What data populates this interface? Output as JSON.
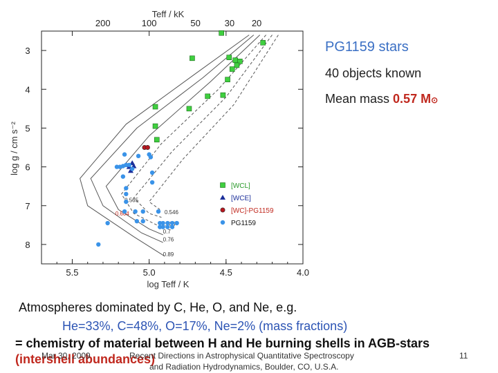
{
  "side_panel": {
    "title": "PG1159 stars",
    "objects": "40 objects known",
    "mass_label": "Mean mass ",
    "mass_value": "0.57 M",
    "mass_unit_symbol": "⊙"
  },
  "chart_data": {
    "type": "scatter",
    "xlabel": "log Teff / K",
    "ylabel": "log g / cm s⁻²",
    "top_axis_label": "Teff / kK",
    "xlim": [
      5.7,
      4.0
    ],
    "ylim": [
      8.5,
      2.5
    ],
    "x_ticks": [
      "5.5",
      "5.0",
      "4.5",
      "4.0"
    ],
    "x_tick_values": [
      5.5,
      5.0,
      4.5,
      4.0
    ],
    "y_ticks": [
      "3",
      "4",
      "5",
      "6",
      "7",
      "8"
    ],
    "y_tick_values": [
      3,
      4,
      5,
      6,
      7,
      8
    ],
    "top_ticks": [
      "200",
      "100",
      "50",
      "30",
      "20"
    ],
    "top_tick_values": [
      200,
      100,
      50,
      30,
      20
    ],
    "track_labels": [
      "0.604",
      "0.565",
      "0.546",
      "0.605",
      "0.7",
      "0.76",
      "0.89"
    ],
    "track_label_positions": [
      [
        5.22,
        7.25
      ],
      [
        5.16,
        6.91
      ],
      [
        4.9,
        7.22
      ],
      [
        4.92,
        7.52
      ],
      [
        4.91,
        7.72
      ],
      [
        4.91,
        7.92
      ],
      [
        4.91,
        8.3
      ]
    ],
    "colors": {
      "wcl": "#3fcf3f",
      "wce": "#1c2f9a",
      "wcpg": "#b8161e",
      "pg1159": "#3a93e8",
      "track": "#555555"
    },
    "legend": {
      "position": "lower-right",
      "entries": [
        "[WCL]",
        "[WCE]",
        "[WC]-PG1159",
        "PG1159"
      ]
    },
    "series": [
      {
        "name": "[WCL]",
        "marker": "square",
        "points": [
          [
            4.53,
            2.55
          ],
          [
            4.26,
            2.8
          ],
          [
            4.72,
            3.2
          ],
          [
            4.48,
            3.18
          ],
          [
            4.44,
            3.25
          ],
          [
            4.41,
            3.28
          ],
          [
            4.43,
            3.38
          ],
          [
            4.46,
            3.48
          ],
          [
            4.49,
            3.75
          ],
          [
            4.62,
            4.18
          ],
          [
            4.52,
            4.15
          ],
          [
            4.96,
            4.45
          ],
          [
            4.74,
            4.5
          ],
          [
            4.96,
            4.95
          ],
          [
            4.95,
            5.3
          ]
        ]
      },
      {
        "name": "[WCE]",
        "marker": "triangle",
        "points": [
          [
            5.11,
            5.9
          ],
          [
            5.15,
            5.95
          ],
          [
            5.13,
            6.0
          ],
          [
            5.12,
            6.1
          ],
          [
            5.1,
            5.98
          ]
        ]
      },
      {
        "name": "[WC]-PG1159",
        "marker": "circle",
        "points": [
          [
            5.03,
            5.5
          ],
          [
            5.01,
            5.5
          ]
        ]
      },
      {
        "name": "PG1159",
        "marker": "circle",
        "points": [
          [
            5.16,
            5.68
          ],
          [
            5.07,
            5.72
          ],
          [
            5.0,
            5.68
          ],
          [
            5.21,
            6.0
          ],
          [
            5.19,
            6.0
          ],
          [
            5.17,
            5.98
          ],
          [
            5.15,
            5.95
          ],
          [
            5.13,
            5.95
          ],
          [
            5.11,
            6.05
          ],
          [
            5.17,
            6.25
          ],
          [
            5.15,
            6.55
          ],
          [
            5.15,
            6.7
          ],
          [
            5.15,
            6.9
          ],
          [
            4.99,
            5.75
          ],
          [
            4.98,
            6.15
          ],
          [
            4.98,
            6.4
          ],
          [
            5.16,
            7.15
          ],
          [
            5.09,
            7.15
          ],
          [
            5.04,
            7.15
          ],
          [
            4.94,
            7.15
          ],
          [
            5.04,
            7.4
          ],
          [
            5.08,
            7.4
          ],
          [
            4.93,
            7.45
          ],
          [
            4.91,
            7.45
          ],
          [
            4.88,
            7.45
          ],
          [
            4.85,
            7.45
          ],
          [
            4.82,
            7.45
          ],
          [
            4.93,
            7.55
          ],
          [
            4.91,
            7.55
          ],
          [
            4.88,
            7.55
          ],
          [
            4.85,
            7.55
          ],
          [
            5.27,
            7.45
          ],
          [
            5.33,
            8.0
          ]
        ]
      }
    ]
  },
  "bottom_text": {
    "line1": "Atmospheres dominated by C, He, O, and Ne, e.g.",
    "line2": "He=33%, C=48%, O=17%, Ne=2%   (mass fractions)",
    "line3": "= chemistry of material between H and He burning shells in AGB-stars",
    "line4": "(intershell abundances)"
  },
  "footer": {
    "date": "Mar 30, 2009",
    "conference_line1": "Recent Directions in Astrophysical Quantitative Spectroscopy",
    "conference_line2": "and Radiation Hydrodynamics, Boulder, CO, U.S.A.",
    "page_number": "11"
  }
}
